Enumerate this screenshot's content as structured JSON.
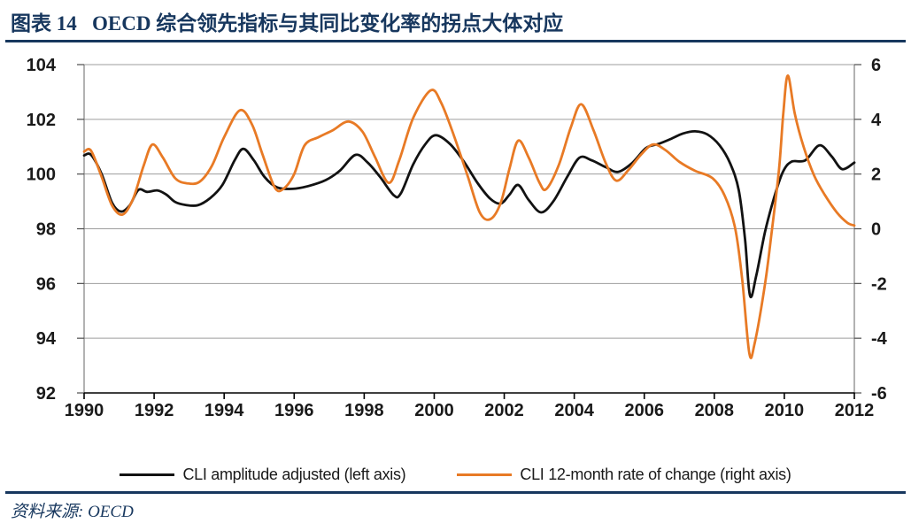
{
  "header": {
    "title": "图表 14   OECD 综合领先指标与其同比变化率的拐点大体对应"
  },
  "source_note": "资料来源: OECD",
  "colors": {
    "accent_navy": "#17375E",
    "black_series": "#121212",
    "orange_series": "#E87A25",
    "gridline": "#9d9d9d",
    "axis_line": "#808080",
    "x_axis_line": "#000000",
    "tick_label": "#1a1a1a"
  },
  "chart_data": {
    "type": "line",
    "title": "",
    "grid": true,
    "legend_position": "bottom",
    "x_axis": {
      "label": "",
      "ticks": [
        1990,
        1992,
        1994,
        1996,
        1998,
        2000,
        2002,
        2004,
        2006,
        2008,
        2010,
        2012
      ],
      "range": [
        1990,
        2012
      ]
    },
    "y_axis_left": {
      "label": "",
      "ticks": [
        104,
        102,
        100,
        98,
        96,
        94,
        92
      ],
      "range": [
        92,
        104
      ]
    },
    "y_axis_right": {
      "label": "",
      "ticks": [
        6,
        4,
        2,
        0,
        -2,
        -4,
        -6
      ],
      "range": [
        -6,
        6
      ]
    },
    "series": [
      {
        "name": "CLI amplitude adjusted (left axis)",
        "axis": "left",
        "color": "#121212",
        "points": [
          [
            1990.0,
            100.68
          ],
          [
            1990.2,
            100.7
          ],
          [
            1990.5,
            100.0
          ],
          [
            1990.8,
            98.95
          ],
          [
            1991.05,
            98.63
          ],
          [
            1991.3,
            98.85
          ],
          [
            1991.55,
            99.42
          ],
          [
            1991.8,
            99.35
          ],
          [
            1992.1,
            99.4
          ],
          [
            1992.35,
            99.25
          ],
          [
            1992.6,
            98.98
          ],
          [
            1992.9,
            98.87
          ],
          [
            1993.25,
            98.86
          ],
          [
            1993.6,
            99.12
          ],
          [
            1993.95,
            99.6
          ],
          [
            1994.3,
            100.5
          ],
          [
            1994.55,
            100.92
          ],
          [
            1994.85,
            100.5
          ],
          [
            1995.15,
            99.9
          ],
          [
            1995.5,
            99.52
          ],
          [
            1995.95,
            99.46
          ],
          [
            1996.4,
            99.56
          ],
          [
            1996.9,
            99.78
          ],
          [
            1997.3,
            100.12
          ],
          [
            1997.75,
            100.7
          ],
          [
            1998.1,
            100.42
          ],
          [
            1998.45,
            99.9
          ],
          [
            1998.85,
            99.22
          ],
          [
            1999.05,
            99.3
          ],
          [
            1999.4,
            100.35
          ],
          [
            1999.75,
            101.1
          ],
          [
            2000.05,
            101.42
          ],
          [
            2000.45,
            101.1
          ],
          [
            2000.85,
            100.45
          ],
          [
            2001.25,
            99.65
          ],
          [
            2001.6,
            99.1
          ],
          [
            2001.9,
            98.92
          ],
          [
            2002.15,
            99.25
          ],
          [
            2002.4,
            99.6
          ],
          [
            2002.7,
            99.05
          ],
          [
            2003.05,
            98.6
          ],
          [
            2003.4,
            99.0
          ],
          [
            2003.8,
            99.9
          ],
          [
            2004.15,
            100.6
          ],
          [
            2004.5,
            100.5
          ],
          [
            2004.9,
            100.25
          ],
          [
            2005.25,
            100.08
          ],
          [
            2005.65,
            100.4
          ],
          [
            2006.05,
            100.95
          ],
          [
            2006.4,
            101.1
          ],
          [
            2006.75,
            101.28
          ],
          [
            2007.1,
            101.48
          ],
          [
            2007.45,
            101.56
          ],
          [
            2007.8,
            101.45
          ],
          [
            2008.15,
            101.05
          ],
          [
            2008.45,
            100.4
          ],
          [
            2008.7,
            99.4
          ],
          [
            2008.88,
            97.6
          ],
          [
            2009.02,
            95.55
          ],
          [
            2009.2,
            96.3
          ],
          [
            2009.45,
            97.9
          ],
          [
            2009.7,
            99.1
          ],
          [
            2009.95,
            100.05
          ],
          [
            2010.2,
            100.45
          ],
          [
            2010.6,
            100.5
          ],
          [
            2011.0,
            101.05
          ],
          [
            2011.35,
            100.65
          ],
          [
            2011.65,
            100.18
          ],
          [
            2012.0,
            100.42
          ]
        ]
      },
      {
        "name": "CLI 12-month rate of change (right axis)",
        "axis": "right",
        "color": "#E87A25",
        "points": [
          [
            1990.0,
            2.82
          ],
          [
            1990.2,
            2.85
          ],
          [
            1990.5,
            1.9
          ],
          [
            1990.8,
            0.85
          ],
          [
            1991.1,
            0.52
          ],
          [
            1991.4,
            1.1
          ],
          [
            1991.7,
            2.3
          ],
          [
            1991.95,
            3.08
          ],
          [
            1992.25,
            2.6
          ],
          [
            1992.6,
            1.85
          ],
          [
            1992.95,
            1.66
          ],
          [
            1993.3,
            1.72
          ],
          [
            1993.65,
            2.3
          ],
          [
            1994.0,
            3.35
          ],
          [
            1994.45,
            4.33
          ],
          [
            1994.8,
            3.8
          ],
          [
            1995.1,
            2.7
          ],
          [
            1995.45,
            1.5
          ],
          [
            1995.7,
            1.47
          ],
          [
            1996.0,
            2.0
          ],
          [
            1996.3,
            3.05
          ],
          [
            1996.7,
            3.35
          ],
          [
            1997.1,
            3.6
          ],
          [
            1997.55,
            3.92
          ],
          [
            1997.95,
            3.55
          ],
          [
            1998.3,
            2.65
          ],
          [
            1998.7,
            1.68
          ],
          [
            1999.0,
            2.5
          ],
          [
            1999.4,
            4.05
          ],
          [
            1999.9,
            5.06
          ],
          [
            2000.2,
            4.6
          ],
          [
            2000.55,
            3.45
          ],
          [
            2000.95,
            1.95
          ],
          [
            2001.3,
            0.6
          ],
          [
            2001.6,
            0.35
          ],
          [
            2001.9,
            0.95
          ],
          [
            2002.15,
            2.2
          ],
          [
            2002.4,
            3.22
          ],
          [
            2002.7,
            2.6
          ],
          [
            2003.0,
            1.7
          ],
          [
            2003.2,
            1.45
          ],
          [
            2003.55,
            2.3
          ],
          [
            2003.9,
            3.7
          ],
          [
            2004.2,
            4.55
          ],
          [
            2004.55,
            3.6
          ],
          [
            2004.9,
            2.4
          ],
          [
            2005.2,
            1.76
          ],
          [
            2005.55,
            2.15
          ],
          [
            2005.9,
            2.7
          ],
          [
            2006.25,
            3.08
          ],
          [
            2006.6,
            2.88
          ],
          [
            2007.0,
            2.45
          ],
          [
            2007.45,
            2.12
          ],
          [
            2007.95,
            1.85
          ],
          [
            2008.3,
            1.2
          ],
          [
            2008.6,
            0.0
          ],
          [
            2008.8,
            -1.9
          ],
          [
            2009.0,
            -4.55
          ],
          [
            2009.15,
            -4.2
          ],
          [
            2009.45,
            -2.0
          ],
          [
            2009.65,
            0.0
          ],
          [
            2009.85,
            2.2
          ],
          [
            2009.97,
            4.2
          ],
          [
            2010.1,
            5.6
          ],
          [
            2010.3,
            4.2
          ],
          [
            2010.55,
            3.0
          ],
          [
            2010.85,
            1.95
          ],
          [
            2011.15,
            1.25
          ],
          [
            2011.5,
            0.6
          ],
          [
            2011.8,
            0.22
          ],
          [
            2012.0,
            0.12
          ]
        ]
      }
    ]
  }
}
